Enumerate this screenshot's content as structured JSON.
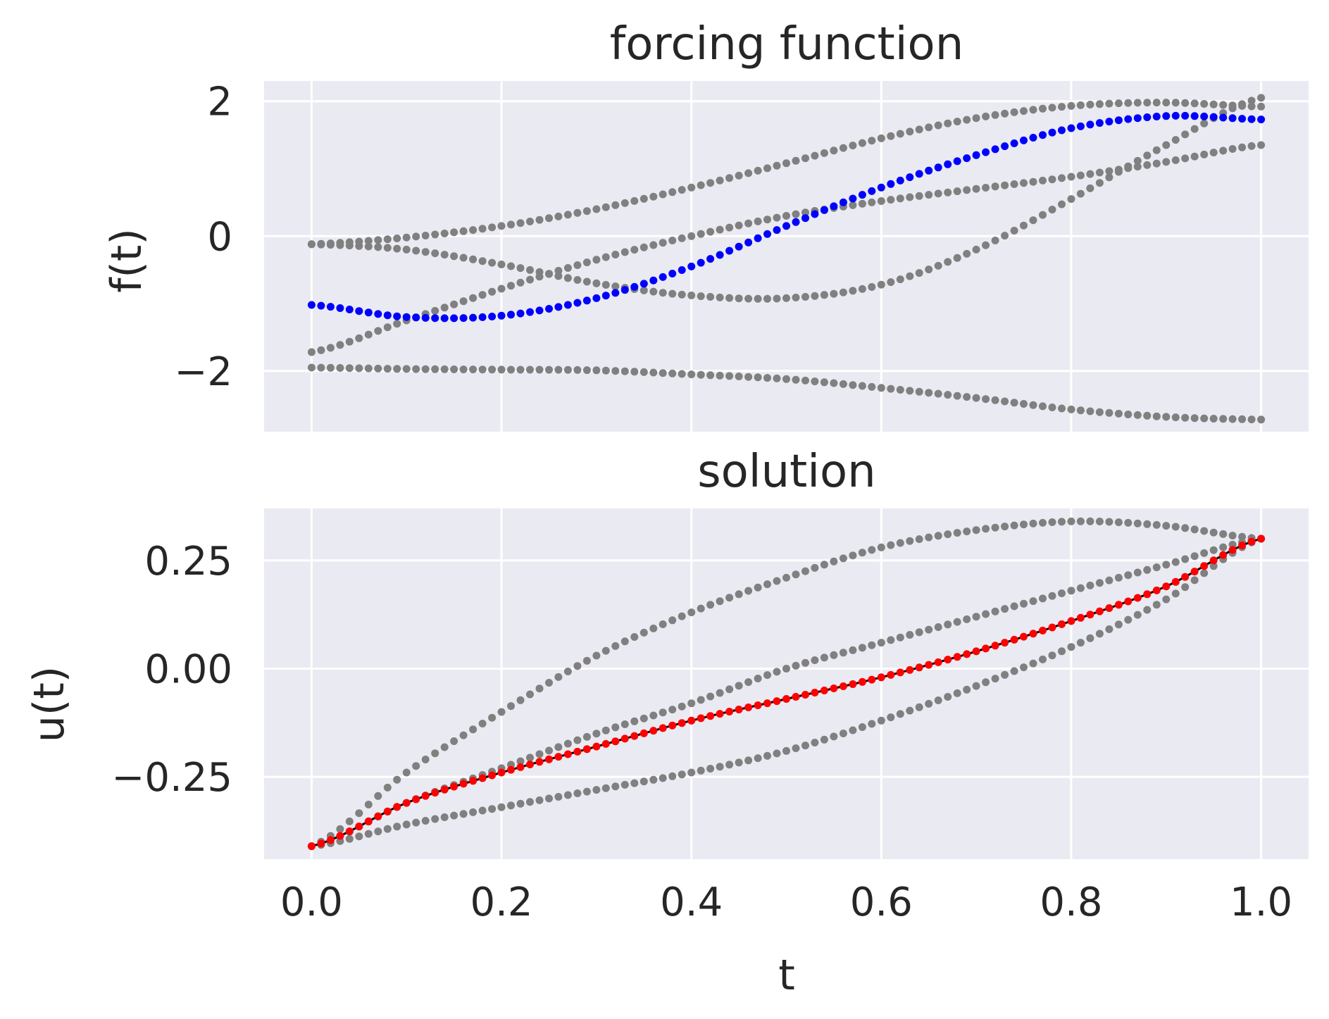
{
  "chart_data": [
    {
      "type": "scatter",
      "panel": "top",
      "title": "forcing function",
      "ylabel": "f(t)",
      "xlabel": "",
      "xlim": [
        -0.05,
        1.05
      ],
      "ylim": [
        -2.9,
        2.3
      ],
      "xticks": [
        0.0,
        0.2,
        0.4,
        0.6,
        0.8,
        1.0
      ],
      "yticks": [
        2,
        0,
        -2
      ],
      "ytick_labels": [
        "2",
        "0",
        "−2"
      ],
      "grid": true,
      "background": "#eaeaf2",
      "series_colors": {
        "grey": "#808080",
        "highlight": "#0000ff"
      },
      "series": [
        {
          "color": "#808080",
          "x": [
            0,
            0.1,
            0.2,
            0.3,
            0.4,
            0.5,
            0.6,
            0.7,
            0.8,
            0.9,
            1.0
          ],
          "values": [
            -0.12,
            -0.02,
            0.15,
            0.4,
            0.72,
            1.08,
            1.45,
            1.75,
            1.93,
            1.98,
            1.92
          ]
        },
        {
          "color": "#808080",
          "x": [
            0,
            0.1,
            0.2,
            0.3,
            0.4,
            0.5,
            0.6,
            0.7,
            0.8,
            0.9,
            1.0
          ],
          "values": [
            -1.95,
            -1.97,
            -1.98,
            -1.99,
            -2.05,
            -2.12,
            -2.25,
            -2.4,
            -2.57,
            -2.68,
            -2.72
          ]
        },
        {
          "color": "#808080",
          "x": [
            0,
            0.1,
            0.2,
            0.3,
            0.4,
            0.5,
            0.6,
            0.7,
            0.8,
            0.9,
            1.0
          ],
          "values": [
            -1.72,
            -1.25,
            -0.78,
            -0.35,
            0.0,
            0.3,
            0.52,
            0.7,
            0.88,
            1.1,
            1.35
          ]
        },
        {
          "color": "#808080",
          "x": [
            0,
            0.1,
            0.2,
            0.3,
            0.4,
            0.5,
            0.6,
            0.7,
            0.8,
            0.9,
            1.0
          ],
          "values": [
            -0.12,
            -0.2,
            -0.42,
            -0.7,
            -0.88,
            -0.92,
            -0.72,
            -0.2,
            0.55,
            1.35,
            2.05
          ]
        },
        {
          "color": "#0000ff",
          "x": [
            0,
            0.1,
            0.2,
            0.3,
            0.4,
            0.5,
            0.6,
            0.7,
            0.8,
            0.9,
            1.0
          ],
          "values": [
            -1.02,
            -1.2,
            -1.18,
            -0.92,
            -0.45,
            0.15,
            0.72,
            1.2,
            1.6,
            1.78,
            1.73
          ]
        }
      ]
    },
    {
      "type": "scatter",
      "panel": "bottom",
      "title": "solution",
      "ylabel": "u(t)",
      "xlabel": "t",
      "xlim": [
        -0.05,
        1.05
      ],
      "ylim": [
        -0.44,
        0.37
      ],
      "xticks": [
        0.0,
        0.2,
        0.4,
        0.6,
        0.8,
        1.0
      ],
      "xtick_labels": [
        "0.0",
        "0.2",
        "0.4",
        "0.6",
        "0.8",
        "1.0"
      ],
      "yticks": [
        0.25,
        0.0,
        -0.25
      ],
      "ytick_labels": [
        "0.25",
        "0.00",
        "−0.25"
      ],
      "grid": true,
      "background": "#eaeaf2",
      "series_colors": {
        "grey": "#808080",
        "highlight": "#ff0000",
        "reference": "#000000"
      },
      "series": [
        {
          "color": "#808080",
          "x": [
            0,
            0.1,
            0.2,
            0.3,
            0.4,
            0.5,
            0.6,
            0.7,
            0.8,
            0.9,
            1.0
          ],
          "values": [
            -0.41,
            -0.24,
            -0.1,
            0.03,
            0.13,
            0.21,
            0.28,
            0.32,
            0.34,
            0.33,
            0.3
          ]
        },
        {
          "color": "#808080",
          "x": [
            0,
            0.1,
            0.2,
            0.3,
            0.4,
            0.5,
            0.6,
            0.7,
            0.8,
            0.9,
            1.0
          ],
          "values": [
            -0.41,
            -0.31,
            -0.23,
            -0.15,
            -0.08,
            0.0,
            0.06,
            0.12,
            0.18,
            0.24,
            0.3
          ]
        },
        {
          "color": "#808080",
          "x": [
            0,
            0.1,
            0.2,
            0.3,
            0.4,
            0.5,
            0.6,
            0.7,
            0.8,
            0.9,
            1.0
          ],
          "values": [
            -0.41,
            -0.36,
            -0.32,
            -0.28,
            -0.24,
            -0.19,
            -0.12,
            -0.04,
            0.05,
            0.16,
            0.3
          ]
        },
        {
          "color": "#000000",
          "line": true,
          "x": [
            0,
            0.1,
            0.2,
            0.3,
            0.4,
            0.5,
            0.6,
            0.7,
            0.8,
            0.9,
            1.0
          ],
          "values": [
            -0.41,
            -0.31,
            -0.24,
            -0.18,
            -0.12,
            -0.07,
            -0.02,
            0.04,
            0.11,
            0.19,
            0.3
          ]
        },
        {
          "color": "#ff0000",
          "x": [
            0,
            0.1,
            0.2,
            0.3,
            0.4,
            0.5,
            0.6,
            0.7,
            0.8,
            0.9,
            1.0
          ],
          "values": [
            -0.41,
            -0.31,
            -0.24,
            -0.18,
            -0.12,
            -0.07,
            -0.02,
            0.04,
            0.11,
            0.19,
            0.3
          ]
        }
      ]
    }
  ]
}
